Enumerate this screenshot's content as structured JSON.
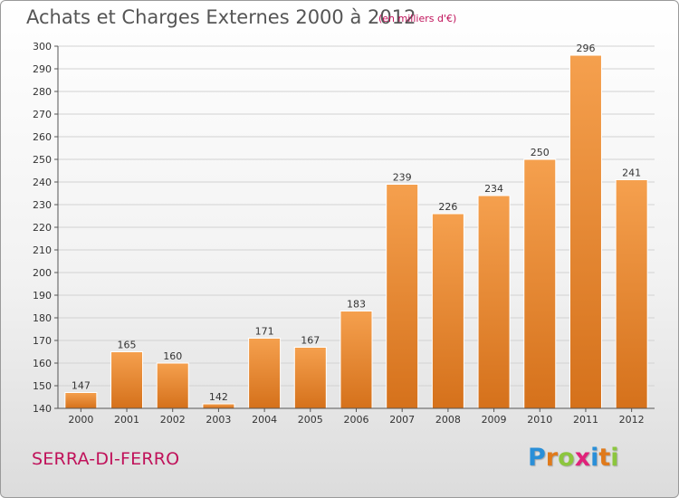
{
  "header": {
    "title": "Achats et Charges Externes 2000 à 2012",
    "unit_note": "(en milliers d'€)"
  },
  "footer": {
    "commune": "SERRA-DI-FERRO",
    "logo": {
      "letters": [
        "P",
        "r",
        "o",
        "x",
        "i",
        "t",
        "i"
      ],
      "colors": [
        "#2a8fd8",
        "#e07a1b",
        "#8cc63e",
        "#e0227a",
        "#2a8fd8",
        "#e07a1b",
        "#8cc63e"
      ]
    }
  },
  "colors": {
    "bar_top": "#f5a04e",
    "bar_bottom": "#d5711b",
    "grid": "#d2d2d2",
    "axis": "#555555",
    "title": "#555555",
    "accent": "#c0125a"
  },
  "chart_data": {
    "type": "bar",
    "title": "Achats et Charges Externes 2000 à 2012",
    "subtitle": "(en milliers d'€)",
    "categories": [
      "2000",
      "2001",
      "2002",
      "2003",
      "2004",
      "2005",
      "2006",
      "2007",
      "2008",
      "2009",
      "2010",
      "2011",
      "2012"
    ],
    "values": [
      147,
      165,
      160,
      142,
      171,
      167,
      183,
      239,
      226,
      234,
      250,
      296,
      241
    ],
    "ylim": [
      140,
      300
    ],
    "yticks": [
      140,
      150,
      160,
      170,
      180,
      190,
      200,
      210,
      220,
      230,
      240,
      250,
      260,
      270,
      280,
      290,
      300
    ],
    "grid": true,
    "data_labels": true
  }
}
